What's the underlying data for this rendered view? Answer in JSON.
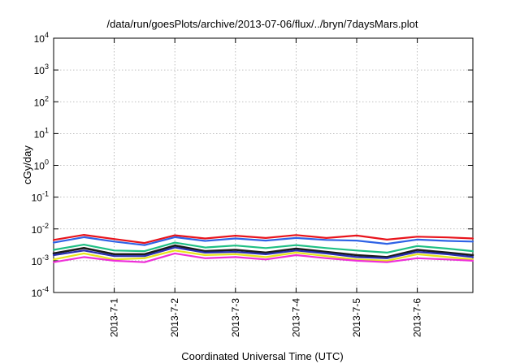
{
  "chart_data": {
    "type": "line",
    "title": "/data/run/goesPlots/archive/2013-07-06/flux/../bryn/7daysMars.plot",
    "xlabel": "Coordinated Universal Time (UTC)",
    "ylabel": "cGy/day",
    "y_scale": "log",
    "ylim": [
      0.0001,
      10000
    ],
    "y_ticks": [
      {
        "base": "10",
        "exp": "-4",
        "value": 0.0001
      },
      {
        "base": "10",
        "exp": "-3",
        "value": 0.001
      },
      {
        "base": "10",
        "exp": "-2",
        "value": 0.01
      },
      {
        "base": "10",
        "exp": "-1",
        "value": 0.1
      },
      {
        "base": "10",
        "exp": "0",
        "value": 1
      },
      {
        "base": "10",
        "exp": "1",
        "value": 10
      },
      {
        "base": "10",
        "exp": "2",
        "value": 100
      },
      {
        "base": "10",
        "exp": "3",
        "value": 1000
      },
      {
        "base": "10",
        "exp": "4",
        "value": 10000
      }
    ],
    "x_range": [
      "2013-06-30 00:00",
      "2013-07-06 22:00"
    ],
    "x_ticks": [
      {
        "label": "2013-7-1",
        "value": "2013-07-01"
      },
      {
        "label": "2013-7-2",
        "value": "2013-07-02"
      },
      {
        "label": "2013-7-3",
        "value": "2013-07-03"
      },
      {
        "label": "2013-7-4",
        "value": "2013-07-04"
      },
      {
        "label": "2013-7-5",
        "value": "2013-07-05"
      },
      {
        "label": "2013-7-6",
        "value": "2013-07-06"
      }
    ],
    "grid": true,
    "x": [
      "2013-06-30 00:00",
      "2013-06-30 12:00",
      "2013-07-01 00:00",
      "2013-07-01 12:00",
      "2013-07-02 00:00",
      "2013-07-02 12:00",
      "2013-07-03 00:00",
      "2013-07-03 12:00",
      "2013-07-04 00:00",
      "2013-07-04 12:00",
      "2013-07-05 00:00",
      "2013-07-05 12:00",
      "2013-07-06 00:00",
      "2013-07-06 12:00",
      "2013-07-06 22:00"
    ],
    "series": [
      {
        "color": "#e8141c",
        "values": [
          0.0045,
          0.0065,
          0.0048,
          0.0036,
          0.0063,
          0.005,
          0.0061,
          0.0052,
          0.0064,
          0.0052,
          0.0062,
          0.0046,
          0.0057,
          0.0054,
          0.005
        ]
      },
      {
        "color": "#2f63e6",
        "values": [
          0.0037,
          0.0055,
          0.004,
          0.0031,
          0.0055,
          0.0042,
          0.005,
          0.0043,
          0.0052,
          0.0045,
          0.0043,
          0.0034,
          0.0046,
          0.0042,
          0.004
        ]
      },
      {
        "color": "#1fbf84",
        "values": [
          0.0022,
          0.0032,
          0.0021,
          0.002,
          0.0037,
          0.0026,
          0.003,
          0.0025,
          0.0031,
          0.0025,
          0.0021,
          0.0018,
          0.0029,
          0.0024,
          0.002
        ]
      },
      {
        "color": "#1a1a1a",
        "values": [
          0.0017,
          0.0025,
          0.0016,
          0.0016,
          0.003,
          0.002,
          0.0022,
          0.0018,
          0.0024,
          0.0019,
          0.0015,
          0.0013,
          0.0022,
          0.0018,
          0.0015
        ]
      },
      {
        "color": "#2a2fb0",
        "values": [
          0.0015,
          0.0021,
          0.0014,
          0.0014,
          0.0026,
          0.0018,
          0.0019,
          0.0016,
          0.0021,
          0.0017,
          0.0013,
          0.0012,
          0.0019,
          0.0016,
          0.0013
        ]
      },
      {
        "color": "#e5e51a",
        "values": [
          0.0011,
          0.0017,
          0.0011,
          0.0012,
          0.0021,
          0.0015,
          0.0016,
          0.0013,
          0.0018,
          0.0014,
          0.0011,
          0.001,
          0.0016,
          0.0013,
          0.0011
        ]
      },
      {
        "color": "#ee2fd8",
        "values": [
          0.0009,
          0.0013,
          0.001,
          0.0009,
          0.0017,
          0.0012,
          0.0013,
          0.0011,
          0.0015,
          0.0012,
          0.001,
          0.0009,
          0.0012,
          0.0011,
          0.001
        ]
      }
    ]
  }
}
